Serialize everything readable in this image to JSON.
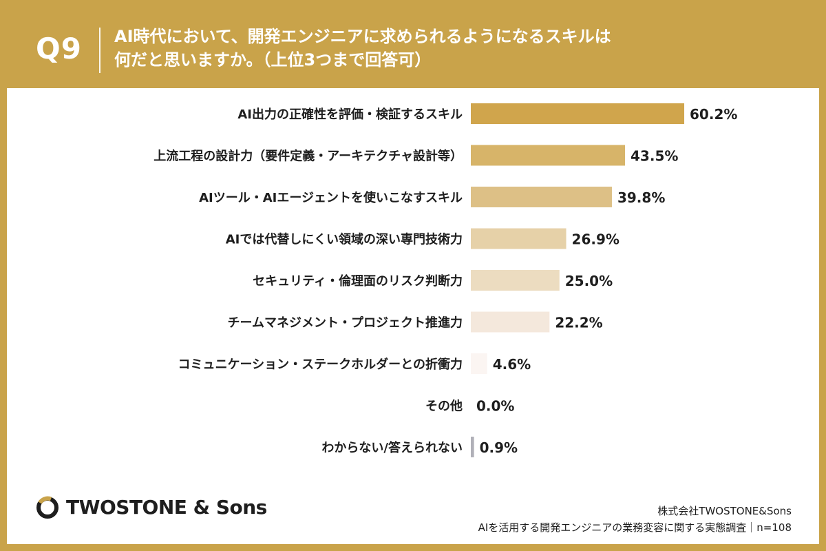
{
  "header": {
    "question_number": "Q9",
    "title_line1": "AI時代において、開発エンジニアに求められるようになるスキルは",
    "title_line2": "何だと思いますか。（上位3つまで回答可）"
  },
  "chart_data": {
    "type": "bar",
    "orientation": "horizontal",
    "unit": "%",
    "categories": [
      "AI出力の正確性を評価・検証するスキル",
      "上流工程の設計力（要件定義・アーキテクチャ設計等）",
      "AIツール・AIエージェントを使いこなすスキル",
      "AIでは代替しにくい領域の深い専門技術力",
      "セキュリティ・倫理面のリスク判断力",
      "チームマネジメント・プロジェクト推進力",
      "コミュニケーション・ステークホルダーとの折衝力",
      "その他",
      "わからない/答えられない"
    ],
    "values": [
      60.2,
      43.5,
      39.8,
      26.9,
      25.0,
      22.2,
      4.6,
      0.0,
      0.9
    ],
    "value_labels": [
      "60.2%",
      "43.5%",
      "39.8%",
      "26.9%",
      "25.0%",
      "22.2%",
      "4.6%",
      "0.0%",
      "0.9%"
    ],
    "bar_colors": [
      "#d0a54c",
      "#d7b469",
      "#ddc086",
      "#e6d1a8",
      "#ecdcc0",
      "#f4e8dc",
      "#fbf5f2",
      "#ffffff",
      "#b0b0b8"
    ],
    "xlim": [
      0,
      100
    ],
    "grid": false,
    "legend": "none"
  },
  "footer": {
    "logo_text": "TWOSTONE & Sons",
    "source_line1": "株式会社TWOSTONE&Sons",
    "source_line2": "AIを活用する開発エンジニアの業務変容に関する実態調査｜n=108"
  }
}
